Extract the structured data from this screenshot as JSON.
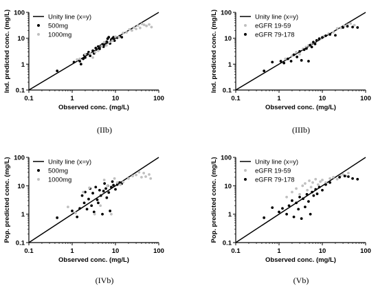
{
  "chart_data": [
    {
      "type": "scatter",
      "xscale": "log",
      "yscale": "log",
      "xlim": [
        0.1,
        100
      ],
      "ylim": [
        0.1,
        100
      ],
      "xticks": [
        "0.1",
        "1",
        "10",
        "100"
      ],
      "yticks": [
        "0.1",
        "1",
        "10",
        "100"
      ],
      "xlabel": "Observed conc. (mg/L)",
      "ylabel": "Ind. predicted conc. (mg/L)",
      "caption": "(IIb)",
      "legend_position": "top-left",
      "grid": false,
      "series": [
        {
          "name": "Unity line (x=y)",
          "kind": "line",
          "color": "#000000",
          "points": [
            [
              0.1,
              0.1
            ],
            [
              100,
              100
            ]
          ]
        },
        {
          "name": "500mg",
          "kind": "scatter",
          "color": "#000000",
          "points": [
            [
              0.45,
              0.55
            ],
            [
              1.1,
              1.2
            ],
            [
              1.5,
              1.3
            ],
            [
              1.6,
              1.0
            ],
            [
              1.8,
              1.6
            ],
            [
              1.9,
              2.2
            ],
            [
              2.0,
              1.8
            ],
            [
              2.2,
              2.4
            ],
            [
              2.4,
              2.9
            ],
            [
              2.6,
              2.1
            ],
            [
              3.0,
              3.3
            ],
            [
              3.2,
              2.6
            ],
            [
              3.5,
              4.2
            ],
            [
              3.8,
              3.6
            ],
            [
              4.0,
              4.8
            ],
            [
              4.3,
              3.9
            ],
            [
              4.6,
              5.2
            ],
            [
              5.0,
              5.8
            ],
            [
              5.3,
              4.7
            ],
            [
              5.6,
              6.4
            ],
            [
              6.0,
              5.5
            ],
            [
              6.3,
              7.4
            ],
            [
              6.6,
              9.6
            ],
            [
              7.0,
              11.0
            ],
            [
              7.5,
              6.3
            ],
            [
              8.0,
              8.9
            ],
            [
              8.5,
              9.8
            ],
            [
              9.0,
              11.0
            ],
            [
              9.5,
              8.1
            ],
            [
              11.0,
              10.5
            ],
            [
              12.5,
              12.0
            ],
            [
              14.0,
              11.0
            ]
          ]
        },
        {
          "name": "1000mg",
          "kind": "scatter",
          "color": "#c0c0c0",
          "points": [
            [
              1.3,
              1.5
            ],
            [
              1.5,
              1.6
            ],
            [
              2.0,
              2.4
            ],
            [
              2.6,
              2.6
            ],
            [
              3.0,
              1.8
            ],
            [
              3.4,
              2.9
            ],
            [
              4.0,
              3.3
            ],
            [
              4.8,
              5.0
            ],
            [
              5.5,
              7.0
            ],
            [
              6.2,
              5.3
            ],
            [
              7.2,
              7.1
            ],
            [
              8.5,
              8.0
            ],
            [
              10.0,
              11.5
            ],
            [
              12.0,
              11.0
            ],
            [
              15.0,
              16.0
            ],
            [
              18.0,
              17.0
            ],
            [
              21.0,
              22.0
            ],
            [
              24.0,
              20.0
            ],
            [
              27.0,
              26.0
            ],
            [
              30.0,
              23.0
            ],
            [
              33.0,
              31.0
            ],
            [
              37.0,
              25.0
            ],
            [
              41.0,
              36.0
            ],
            [
              46.0,
              33.0
            ],
            [
              52.0,
              30.0
            ],
            [
              60.0,
              34.0
            ],
            [
              68.0,
              27.0
            ]
          ]
        }
      ]
    },
    {
      "type": "scatter",
      "xscale": "log",
      "yscale": "log",
      "xlim": [
        0.1,
        100
      ],
      "ylim": [
        0.1,
        100
      ],
      "xticks": [
        "0.1",
        "1",
        "10",
        "100"
      ],
      "yticks": [
        "0.1",
        "1",
        "10",
        "100"
      ],
      "xlabel": "Observed conc. (mg/L)",
      "ylabel": "Ind. predicted conc. (mg/L)",
      "caption": "(IIIb)",
      "legend_position": "top-left",
      "grid": false,
      "series": [
        {
          "name": "Unity line (x=y)",
          "kind": "line",
          "color": "#000000",
          "points": [
            [
              0.1,
              0.1
            ],
            [
              100,
              100
            ]
          ]
        },
        {
          "name": "eGFR 19-59",
          "kind": "scatter",
          "color": "#c0c0c0",
          "points": [
            [
              1.4,
              1.6
            ],
            [
              2.0,
              2.1
            ],
            [
              2.5,
              2.9
            ],
            [
              3.0,
              2.4
            ],
            [
              3.6,
              3.9
            ],
            [
              4.2,
              4.6
            ],
            [
              4.8,
              5.3
            ],
            [
              5.5,
              6.1
            ],
            [
              6.5,
              6.6
            ],
            [
              7.5,
              8.2
            ],
            [
              9.0,
              9.4
            ],
            [
              11.0,
              12.0
            ],
            [
              14.0,
              15.0
            ],
            [
              18.0,
              17.0
            ],
            [
              22.0,
              24.0
            ],
            [
              27.0,
              25.0
            ],
            [
              32.0,
              30.0
            ],
            [
              38.0,
              33.0
            ],
            [
              45.0,
              37.0
            ],
            [
              55.0,
              32.0
            ]
          ]
        },
        {
          "name": "eGFR 79-178",
          "kind": "scatter",
          "color": "#000000",
          "points": [
            [
              0.45,
              0.55
            ],
            [
              0.7,
              1.2
            ],
            [
              1.1,
              1.3
            ],
            [
              1.3,
              1.1
            ],
            [
              1.6,
              1.6
            ],
            [
              1.9,
              1.3
            ],
            [
              2.2,
              2.3
            ],
            [
              2.6,
              1.9
            ],
            [
              3.0,
              3.1
            ],
            [
              3.3,
              1.4
            ],
            [
              3.8,
              3.6
            ],
            [
              4.3,
              4.0
            ],
            [
              4.8,
              1.3
            ],
            [
              5.2,
              5.4
            ],
            [
              5.7,
              4.6
            ],
            [
              6.2,
              7.1
            ],
            [
              6.8,
              6.0
            ],
            [
              7.4,
              8.3
            ],
            [
              8.5,
              9.6
            ],
            [
              10.0,
              10.8
            ],
            [
              12.0,
              12.5
            ],
            [
              15.0,
              14.0
            ],
            [
              20.0,
              13.0
            ],
            [
              30.0,
              26.0
            ],
            [
              38.0,
              29.0
            ],
            [
              50.0,
              27.0
            ],
            [
              65.0,
              26.0
            ]
          ]
        }
      ]
    },
    {
      "type": "scatter",
      "xscale": "log",
      "yscale": "log",
      "xlim": [
        0.1,
        100
      ],
      "ylim": [
        0.1,
        100
      ],
      "xticks": [
        "0.1",
        "1",
        "10",
        "100"
      ],
      "yticks": [
        "0.1",
        "1",
        "10",
        "100"
      ],
      "xlabel": "Observed conc. (mg/L)",
      "ylabel": "Pop. predicted conc. (mg/L)",
      "caption": "(IVb)",
      "legend_position": "top-left",
      "grid": false,
      "series": [
        {
          "name": "Unity line (x=y)",
          "kind": "line",
          "color": "#000000",
          "points": [
            [
              0.1,
              0.1
            ],
            [
              100,
              100
            ]
          ]
        },
        {
          "name": "500mg",
          "kind": "scatter",
          "color": "#000000",
          "points": [
            [
              0.45,
              0.75
            ],
            [
              1.0,
              1.3
            ],
            [
              1.3,
              0.8
            ],
            [
              1.5,
              1.6
            ],
            [
              1.7,
              4.5
            ],
            [
              1.9,
              2.5
            ],
            [
              2.0,
              6.0
            ],
            [
              2.2,
              1.5
            ],
            [
              2.4,
              3.4
            ],
            [
              2.6,
              8.0
            ],
            [
              2.8,
              2.0
            ],
            [
              3.0,
              5.5
            ],
            [
              3.2,
              1.2
            ],
            [
              3.5,
              9.0
            ],
            [
              3.8,
              3.2
            ],
            [
              4.0,
              2.5
            ],
            [
              4.3,
              7.0
            ],
            [
              4.6,
              4.5
            ],
            [
              5.0,
              1.0
            ],
            [
              5.3,
              6.5
            ],
            [
              5.6,
              12.0
            ],
            [
              6.0,
              8.0
            ],
            [
              6.3,
              3.8
            ],
            [
              6.6,
              10.0
            ],
            [
              7.0,
              5.8
            ],
            [
              7.5,
              1.3
            ],
            [
              8.0,
              9.0
            ],
            [
              8.5,
              14.0
            ],
            [
              9.0,
              10.5
            ],
            [
              10.0,
              7.5
            ],
            [
              11.0,
              11.0
            ],
            [
              12.5,
              13.0
            ],
            [
              14.0,
              12.0
            ]
          ]
        },
        {
          "name": "1000mg",
          "kind": "scatter",
          "color": "#c0c0c0",
          "points": [
            [
              0.8,
              1.8
            ],
            [
              1.2,
              1.1
            ],
            [
              1.8,
              6.0
            ],
            [
              2.5,
              8.5
            ],
            [
              3.3,
              1.0
            ],
            [
              4.5,
              2.0
            ],
            [
              5.5,
              16.0
            ],
            [
              6.5,
              10.0
            ],
            [
              8.0,
              1.0
            ],
            [
              9.5,
              18.0
            ],
            [
              11.0,
              13.0
            ],
            [
              13.0,
              11.0
            ],
            [
              15.0,
              13.5
            ],
            [
              20.0,
              18.0
            ],
            [
              25.0,
              22.0
            ],
            [
              30.0,
              24.0
            ],
            [
              35.0,
              30.0
            ],
            [
              40.0,
              20.0
            ],
            [
              45.0,
              28.0
            ],
            [
              50.0,
              21.0
            ],
            [
              60.0,
              25.0
            ],
            [
              65.0,
              18.0
            ]
          ]
        }
      ]
    },
    {
      "type": "scatter",
      "xscale": "log",
      "yscale": "log",
      "xlim": [
        0.1,
        100
      ],
      "ylim": [
        0.1,
        100
      ],
      "xticks": [
        "0.1",
        "1",
        "10",
        "100"
      ],
      "yticks": [
        "0.1",
        "1",
        "10",
        "100"
      ],
      "xlabel": "Observed conc. (mg/L)",
      "ylabel": "Pop. predicted conc. (mg/L)",
      "caption": "(Vb)",
      "legend_position": "top-left",
      "grid": false,
      "series": [
        {
          "name": "Unity line (x=y)",
          "kind": "line",
          "color": "#000000",
          "points": [
            [
              0.1,
              0.1
            ],
            [
              100,
              100
            ]
          ]
        },
        {
          "name": "eGFR 19-59",
          "kind": "scatter",
          "color": "#c0c0c0",
          "points": [
            [
              1.5,
              4.0
            ],
            [
              2.0,
              6.0
            ],
            [
              2.5,
              8.0
            ],
            [
              3.0,
              5.0
            ],
            [
              3.5,
              10.0
            ],
            [
              4.0,
              12.0
            ],
            [
              4.5,
              7.0
            ],
            [
              5.0,
              15.0
            ],
            [
              5.5,
              9.0
            ],
            [
              6.0,
              13.0
            ],
            [
              7.0,
              17.0
            ],
            [
              8.0,
              11.0
            ],
            [
              9.0,
              14.0
            ],
            [
              10.0,
              16.0
            ],
            [
              12.0,
              13.0
            ],
            [
              15.0,
              18.0
            ],
            [
              18.0,
              20.0
            ],
            [
              22.0,
              17.0
            ],
            [
              26.0,
              22.0
            ],
            [
              30.0,
              25.0
            ],
            [
              35.0,
              22.0
            ],
            [
              40.0,
              28.0
            ]
          ]
        },
        {
          "name": "eGFR 79-178",
          "kind": "scatter",
          "color": "#000000",
          "points": [
            [
              0.45,
              0.75
            ],
            [
              0.7,
              1.7
            ],
            [
              1.0,
              1.2
            ],
            [
              1.2,
              1.6
            ],
            [
              1.5,
              1.0
            ],
            [
              1.7,
              2.0
            ],
            [
              2.0,
              3.0
            ],
            [
              2.2,
              0.8
            ],
            [
              2.5,
              2.5
            ],
            [
              2.8,
              1.5
            ],
            [
              3.0,
              4.0
            ],
            [
              3.3,
              0.7
            ],
            [
              3.6,
              3.5
            ],
            [
              4.0,
              1.8
            ],
            [
              4.4,
              5.0
            ],
            [
              4.8,
              2.8
            ],
            [
              5.3,
              1.0
            ],
            [
              5.8,
              6.0
            ],
            [
              6.3,
              4.5
            ],
            [
              7.0,
              7.5
            ],
            [
              7.6,
              5.2
            ],
            [
              8.5,
              9.0
            ],
            [
              10.0,
              7.0
            ],
            [
              12.0,
              11.0
            ],
            [
              15.0,
              13.0
            ],
            [
              25.0,
              20.0
            ],
            [
              33.0,
              22.0
            ],
            [
              40.0,
              21.0
            ],
            [
              50.0,
              18.0
            ],
            [
              65.0,
              17.0
            ]
          ]
        }
      ]
    }
  ]
}
